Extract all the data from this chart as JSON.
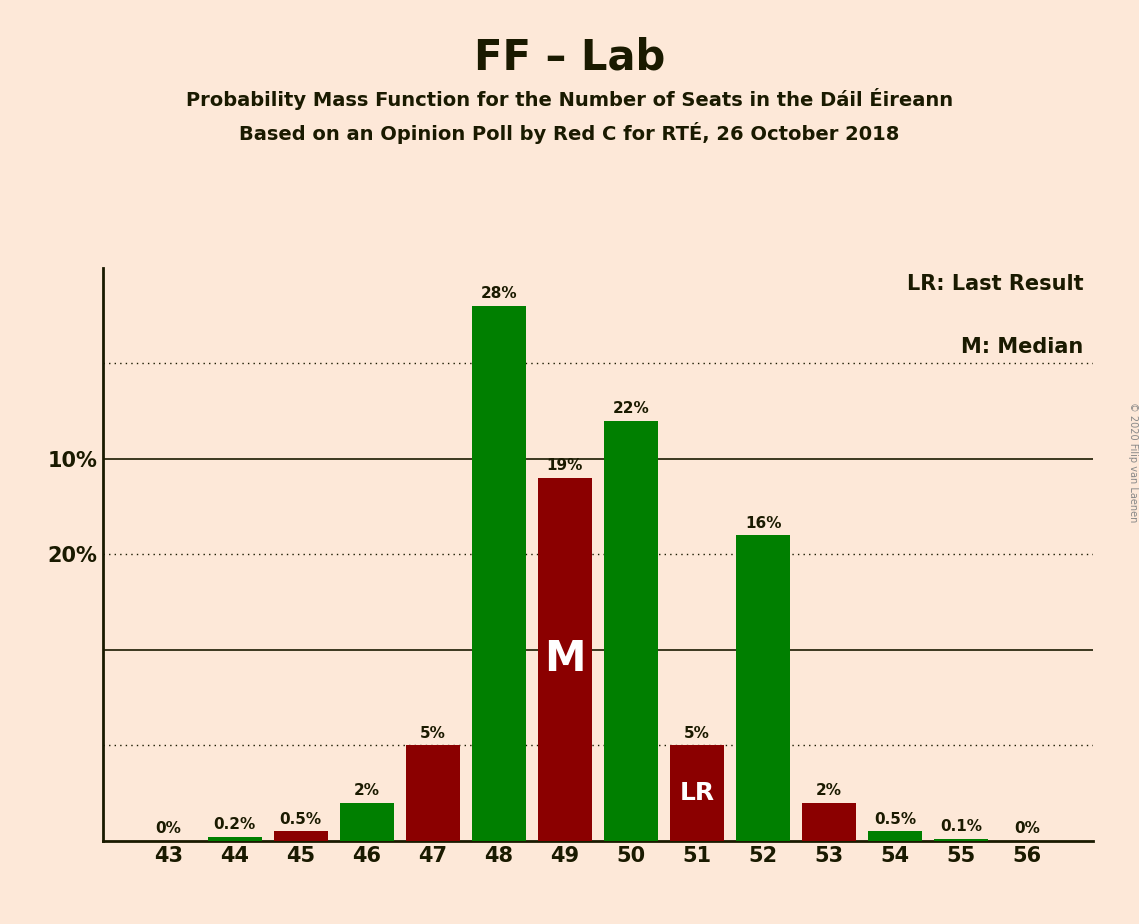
{
  "title": "FF – Lab",
  "subtitle1": "Probability Mass Function for the Number of Seats in the Dáil Éireann",
  "subtitle2": "Based on an Opinion Poll by Red C for RTÉ, 26 October 2018",
  "copyright": "© 2020 Filip van Laenen",
  "seats": [
    43,
    44,
    45,
    46,
    47,
    48,
    49,
    50,
    51,
    52,
    53,
    54,
    55,
    56
  ],
  "values": [
    0.0,
    0.2,
    0.5,
    2.0,
    5.0,
    28.0,
    19.0,
    22.0,
    5.0,
    16.0,
    2.0,
    0.5,
    0.1,
    0.0
  ],
  "labels": [
    "0%",
    "0.2%",
    "0.5%",
    "2%",
    "5%",
    "28%",
    "19%",
    "22%",
    "5%",
    "16%",
    "2%",
    "0.5%",
    "0.1%",
    "0%"
  ],
  "colors": [
    "#007f00",
    "#007f00",
    "#8b0000",
    "#007f00",
    "#8b0000",
    "#007f00",
    "#8b0000",
    "#007f00",
    "#8b0000",
    "#007f00",
    "#8b0000",
    "#007f00",
    "#007f00",
    "#007f00"
  ],
  "median_seat": 49,
  "lr_seat": 51,
  "background_color": "#fde8d8",
  "solid_gridlines": [
    10,
    20
  ],
  "dotted_gridlines": [
    5,
    15,
    25
  ],
  "ylim": [
    0,
    30
  ],
  "ytick_labels": [
    10,
    20
  ],
  "legend_lr": "LR: Last Result",
  "legend_m": "M: Median",
  "green_color": "#007f00",
  "red_color": "#8b0000",
  "dark_color": "#1a1a00",
  "white_color": "#ffffff",
  "bar_width": 0.82
}
